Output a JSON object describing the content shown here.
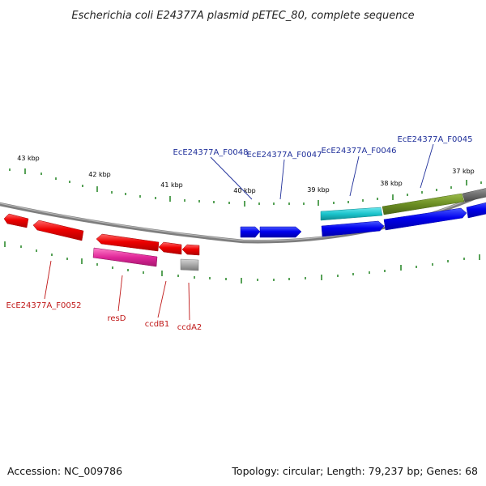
{
  "title": "Escherichia coli E24377A plasmid pETEC_80, complete sequence",
  "footer": {
    "accession": "Accession: NC_009786",
    "summary": "Topology: circular; Length: 79,237 bp; Genes: 68"
  },
  "colors": {
    "backbone": "#8c8c8c",
    "tick": "#2e8b2e",
    "forward_gene": "#0000ee",
    "reverse_gene": "#ee0000",
    "pink_gene": "#e0289a",
    "cyan_gene": "#1cc4cc",
    "olive_gene": "#6b8e23",
    "gray_gene": "#9a9a9a",
    "label_blue": "#1f2f9a",
    "label_red": "#c01818"
  },
  "kbp_labels": [
    "43 kbp",
    "42 kbp",
    "41 kbp",
    "40 kbp",
    "39 kbp",
    "38 kbp",
    "37 kbp"
  ],
  "gene_labels": {
    "top": [
      "EcE24377A_F0048",
      "EcE24377A_F0047",
      "EcE24377A_F0046",
      "EcE24377A_F0045"
    ],
    "bottom": [
      "EcE24377A_F0052",
      "resD",
      "ccdB1",
      "ccdA2"
    ]
  }
}
